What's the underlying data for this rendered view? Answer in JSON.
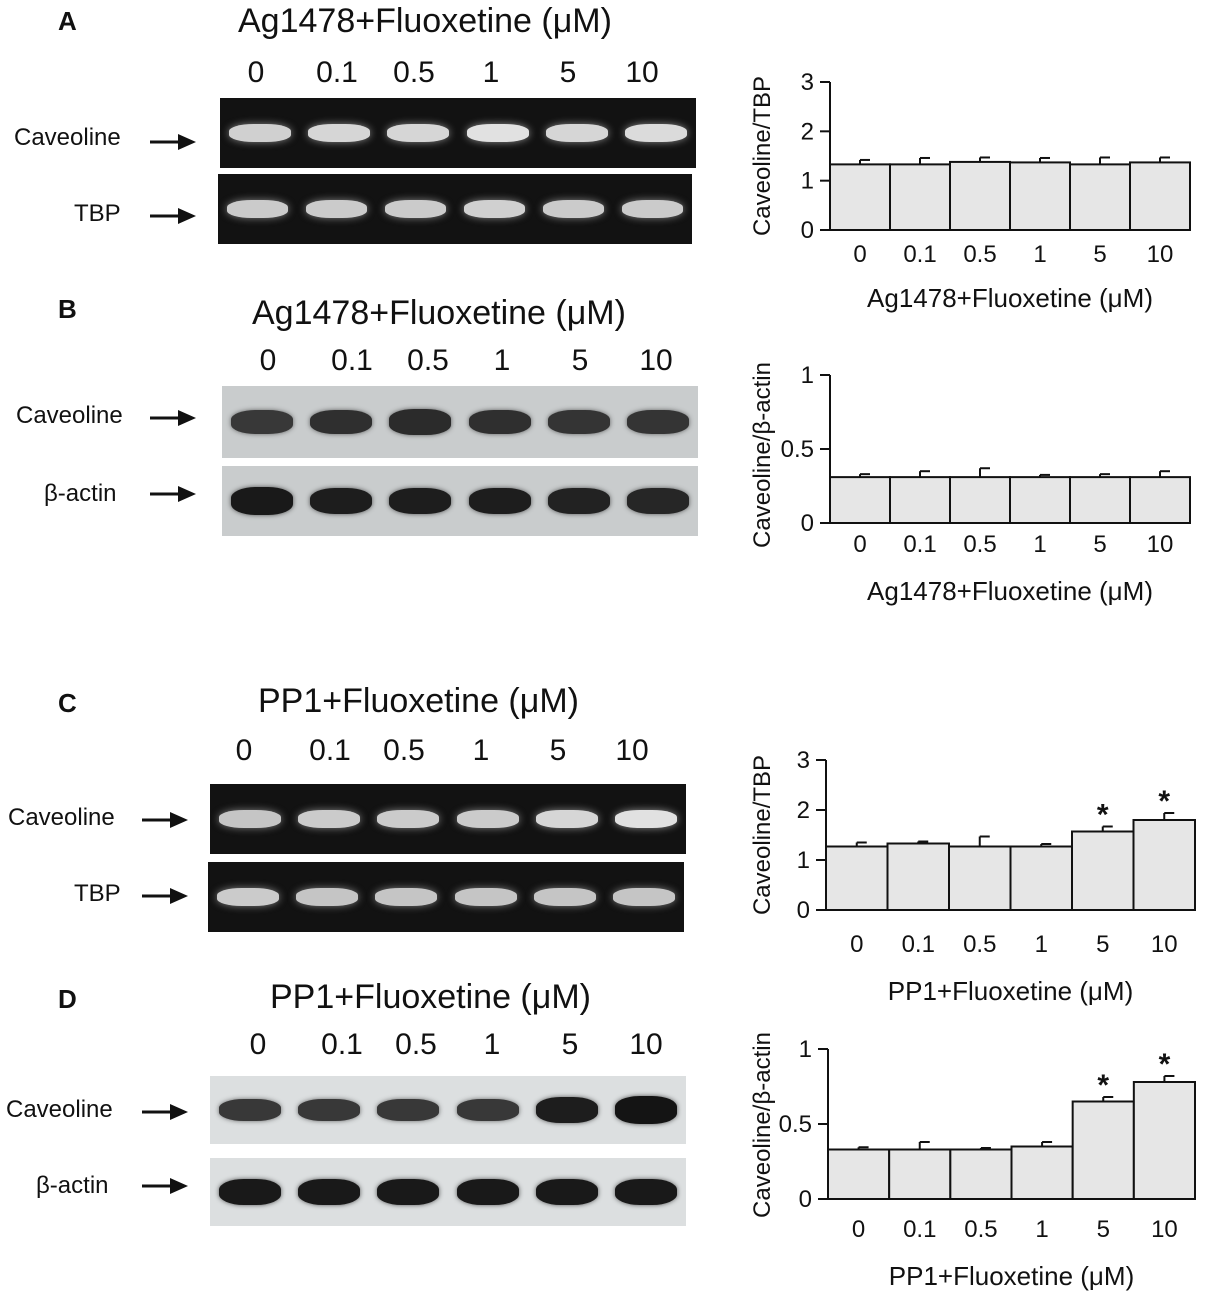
{
  "lane_labels": [
    "0",
    "0.1",
    "0.5",
    "1",
    "5",
    "10"
  ],
  "panels": [
    {
      "id": "A",
      "letter": "A",
      "gel_title": "Ag1478+Fluoxetine (μM)",
      "blot_type": "dark",
      "row1": "Caveoline",
      "row2": "TBP",
      "band_intensity_row1": [
        0.8,
        0.85,
        0.85,
        0.95,
        0.85,
        0.9
      ],
      "band_intensity_row2": [
        0.75,
        0.75,
        0.75,
        0.8,
        0.75,
        0.75
      ]
    },
    {
      "id": "B",
      "letter": "B",
      "gel_title": "Ag1478+Fluoxetine (μM)",
      "blot_type": "light",
      "row1": "Caveoline",
      "row2": "β-actin",
      "band_intensity_row1": [
        0.6,
        0.7,
        0.75,
        0.7,
        0.65,
        0.65
      ],
      "band_intensity_row2": [
        0.95,
        0.9,
        0.9,
        0.9,
        0.85,
        0.8
      ]
    },
    {
      "id": "C",
      "letter": "C",
      "gel_title": "PP1+Fluoxetine (μM)",
      "blot_type": "dark",
      "row1": "Caveoline",
      "row2": "TBP",
      "band_intensity_row1": [
        0.7,
        0.75,
        0.75,
        0.75,
        0.85,
        0.95
      ],
      "band_intensity_row2": [
        0.75,
        0.7,
        0.7,
        0.7,
        0.7,
        0.7
      ]
    },
    {
      "id": "D",
      "letter": "D",
      "gel_title": "PP1+Fluoxetine (μM)",
      "blot_type": "light2",
      "row1": "Caveoline",
      "row2": "β-actin",
      "band_intensity_row1": [
        0.6,
        0.6,
        0.6,
        0.6,
        0.9,
        1.0
      ],
      "band_intensity_row2": [
        0.95,
        0.95,
        0.95,
        0.95,
        0.95,
        0.95
      ]
    }
  ],
  "chart_data": [
    {
      "id": "A",
      "type": "bar",
      "categories": [
        "0",
        "0.1",
        "0.5",
        "1",
        "5",
        "10"
      ],
      "values": [
        1.33,
        1.33,
        1.38,
        1.37,
        1.33,
        1.37
      ],
      "errors": [
        0.09,
        0.13,
        0.09,
        0.09,
        0.14,
        0.1
      ],
      "significant": [
        false,
        false,
        false,
        false,
        false,
        false
      ],
      "xlabel": "Ag1478+Fluoxetine (μM)",
      "ylabel": "Caveoline/TBP",
      "ylim": [
        0,
        3
      ],
      "yticks": [
        "0",
        "1",
        "2",
        "3"
      ],
      "bar_color": "#e6e6e6",
      "grid": false
    },
    {
      "id": "B",
      "type": "bar",
      "categories": [
        "0",
        "0.1",
        "0.5",
        "1",
        "5",
        "10"
      ],
      "values": [
        0.31,
        0.31,
        0.31,
        0.31,
        0.31,
        0.31
      ],
      "errors": [
        0.02,
        0.04,
        0.06,
        0.015,
        0.02,
        0.04
      ],
      "significant": [
        false,
        false,
        false,
        false,
        false,
        false
      ],
      "xlabel": "Ag1478+Fluoxetine (μM)",
      "ylabel": "Caveoline/β-actin",
      "ylim": [
        0,
        1
      ],
      "yticks": [
        "0",
        "0.5",
        "1"
      ],
      "bar_color": "#e6e6e6",
      "grid": false
    },
    {
      "id": "C",
      "type": "bar",
      "categories": [
        "0",
        "0.1",
        "0.5",
        "1",
        "5",
        "10"
      ],
      "values": [
        1.27,
        1.33,
        1.27,
        1.27,
        1.57,
        1.8
      ],
      "errors": [
        0.08,
        0.04,
        0.2,
        0.05,
        0.1,
        0.14
      ],
      "significant": [
        false,
        false,
        false,
        false,
        true,
        true
      ],
      "xlabel": "PP1+Fluoxetine (μM)",
      "ylabel": "Caveoline/TBP",
      "ylim": [
        0,
        3
      ],
      "yticks": [
        "0",
        "1",
        "2",
        "3"
      ],
      "bar_color": "#e6e6e6",
      "grid": false
    },
    {
      "id": "D",
      "type": "bar",
      "categories": [
        "0",
        "0.1",
        "0.5",
        "1",
        "5",
        "10"
      ],
      "values": [
        0.33,
        0.33,
        0.33,
        0.35,
        0.65,
        0.78
      ],
      "errors": [
        0.015,
        0.05,
        0.01,
        0.03,
        0.03,
        0.04
      ],
      "significant": [
        false,
        false,
        false,
        false,
        true,
        true
      ],
      "xlabel": "PP1+Fluoxetine (μM)",
      "ylabel": "Caveoline/β-actin",
      "ylim": [
        0,
        1
      ],
      "yticks": [
        "0",
        "0.5",
        "1"
      ],
      "bar_color": "#e6e6e6",
      "grid": false
    }
  ],
  "significance_marker": "*"
}
